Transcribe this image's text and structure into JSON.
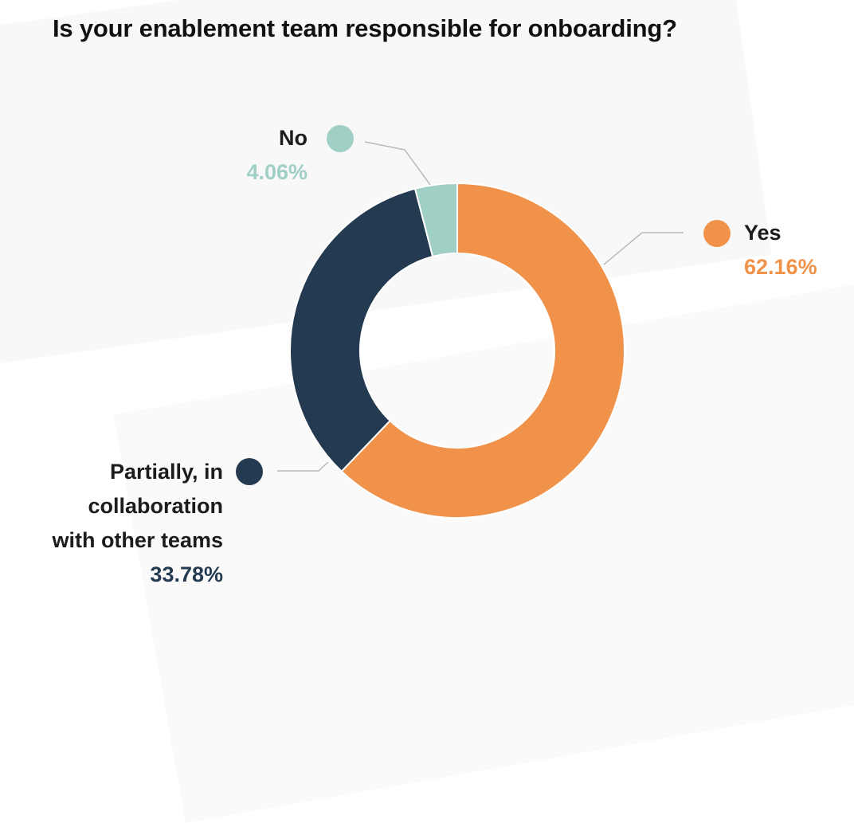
{
  "title": "Is your enablement team responsible for onboarding?",
  "chart_data": {
    "type": "pie",
    "title": "Is your enablement team responsible for onboarding?",
    "donut": true,
    "legend": "callout-labels",
    "slices": [
      {
        "label": "Yes",
        "value": 62.16,
        "display": "62.16%",
        "color": "#f0924a"
      },
      {
        "label": "Partially, in collaboration with other teams",
        "label_lines": [
          "Partially, in",
          "collaboration",
          "with other teams"
        ],
        "value": 33.78,
        "display": "33.78%",
        "color": "#243a50"
      },
      {
        "label": "No",
        "value": 4.06,
        "display": "4.06%",
        "color": "#9fcfc5"
      }
    ]
  }
}
